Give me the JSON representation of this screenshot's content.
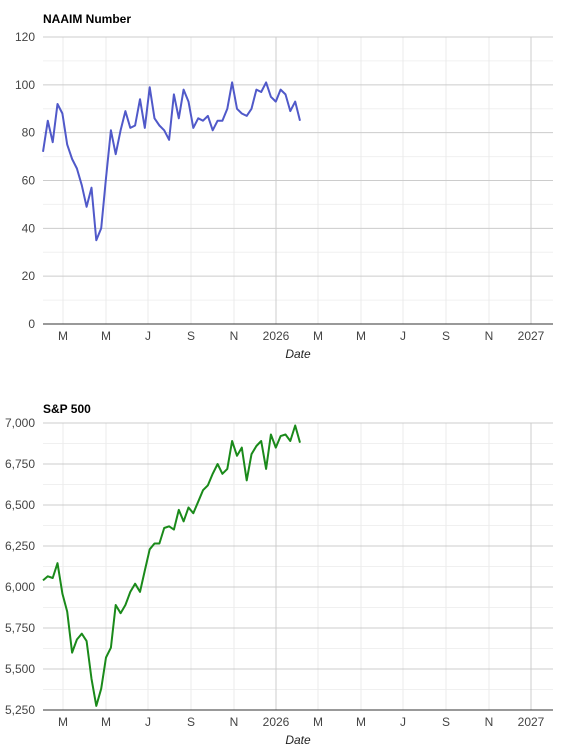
{
  "chart_data": [
    {
      "type": "line",
      "title": "NAAIM Number",
      "xlabel": "Date",
      "ylabel": "",
      "ylim": [
        0,
        120
      ],
      "y_ticks": [
        "0",
        "20",
        "40",
        "60",
        "80",
        "100",
        "120"
      ],
      "x_ticks": [
        "M",
        "M",
        "J",
        "S",
        "N",
        "2026",
        "M",
        "M",
        "J",
        "S",
        "N",
        "2027"
      ],
      "grid": true,
      "color": "#5059c9",
      "series": [
        {
          "values": [
            72,
            85,
            76,
            92,
            88,
            75,
            69,
            65,
            58,
            49,
            57,
            35,
            40,
            61,
            81,
            71,
            81,
            89,
            82,
            83,
            94,
            82,
            99,
            86,
            83,
            81,
            77,
            96,
            86,
            98,
            93,
            82,
            86,
            85,
            87,
            81,
            85,
            85,
            90,
            101,
            90,
            88,
            87,
            90,
            98,
            97,
            101,
            95,
            93,
            98,
            96,
            89,
            93,
            85
          ]
        }
      ]
    },
    {
      "type": "line",
      "title": "S&P 500",
      "xlabel": "Date",
      "ylabel": "",
      "ylim": [
        5250,
        7000
      ],
      "y_ticks": [
        "5,250",
        "5,500",
        "5,750",
        "6,000",
        "6,250",
        "6,500",
        "6,750",
        "7,000"
      ],
      "x_ticks": [
        "M",
        "M",
        "J",
        "S",
        "N",
        "2026",
        "M",
        "M",
        "J",
        "S",
        "N",
        "2027"
      ],
      "grid": true,
      "color": "#1a8a1a",
      "series": [
        {
          "values": [
            6040,
            6065,
            6055,
            6145,
            5960,
            5850,
            5600,
            5680,
            5715,
            5670,
            5440,
            5275,
            5380,
            5570,
            5630,
            5890,
            5840,
            5890,
            5970,
            6020,
            5970,
            6100,
            6230,
            6265,
            6265,
            6360,
            6370,
            6350,
            6470,
            6400,
            6485,
            6450,
            6520,
            6590,
            6620,
            6690,
            6750,
            6690,
            6720,
            6890,
            6800,
            6850,
            6650,
            6810,
            6860,
            6890,
            6720,
            6930,
            6850,
            6920,
            6930,
            6890,
            6985,
            6880
          ]
        }
      ]
    }
  ]
}
